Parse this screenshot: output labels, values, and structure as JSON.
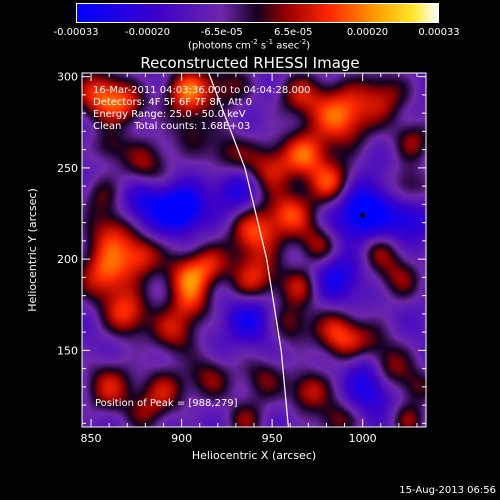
{
  "chart_data": {
    "type": "heatmap",
    "title": "Reconstructed RHESSI Image",
    "xlabel": "Heliocentric X (arcsec)",
    "ylabel": "Heliocentric Y (arcsec)",
    "xlim": [
      845,
      1035
    ],
    "ylim": [
      108,
      302
    ],
    "xticks": [
      850,
      900,
      950,
      1000
    ],
    "yticks": [
      150,
      200,
      250,
      300
    ],
    "colorbar": {
      "min": -0.00033,
      "max": 0.00033,
      "tick_values": [
        -0.00033,
        -0.0002,
        -6.5e-05,
        6.5e-05,
        0.0002,
        0.00033
      ],
      "tick_labels": [
        "-0.00033",
        "-0.00020",
        "-6.5e-05",
        "6.5e-05",
        "0.00020",
        "0.00033"
      ],
      "unit_main": "(photons cm",
      "unit_exp1": "-2",
      "unit_mid": " s",
      "unit_exp2": "-1",
      "unit_mid2": " asec",
      "unit_exp3": "-2",
      "unit_end": ")"
    },
    "annotations": [
      "16-Mar-2011 04:03:36.000 to 04:04:28.000",
      "Detectors: 4F 5F 6F 7F 8F, Att 0",
      "Energy Range: 25.0 - 50.0 keV",
      "Clean    Total counts: 1.68E+03"
    ],
    "peak_label": "Position of Peak = [988,279]",
    "peak": [
      988,
      279
    ],
    "marker": [
      1000,
      224
    ],
    "limb": [
      [
        915,
        302
      ],
      [
        935,
        250
      ],
      [
        947,
        200
      ],
      [
        955,
        150
      ],
      [
        959,
        108
      ]
    ],
    "blobs": [
      [
        855,
        290,
        10,
        0.9
      ],
      [
        870,
        285,
        8,
        0.6
      ],
      [
        903,
        292,
        9,
        0.95
      ],
      [
        925,
        295,
        10,
        0.5
      ],
      [
        965,
        290,
        9,
        0.6
      ],
      [
        988,
        279,
        12,
        1.0
      ],
      [
        1012,
        290,
        10,
        0.6
      ],
      [
        1028,
        265,
        8,
        0.55
      ],
      [
        880,
        252,
        10,
        0.6
      ],
      [
        860,
        262,
        7,
        0.45
      ],
      [
        905,
        270,
        9,
        0.4
      ],
      [
        925,
        258,
        9,
        0.5
      ],
      [
        948,
        250,
        10,
        0.7
      ],
      [
        968,
        258,
        9,
        0.8
      ],
      [
        982,
        242,
        9,
        0.85
      ],
      [
        1025,
        240,
        8,
        0.5
      ],
      [
        900,
        228,
        8,
        -0.95
      ],
      [
        880,
        230,
        10,
        -0.6
      ],
      [
        930,
        238,
        9,
        -0.5
      ],
      [
        1000,
        226,
        11,
        -0.9
      ],
      [
        1025,
        222,
        8,
        -0.5
      ],
      [
        862,
        215,
        10,
        0.7
      ],
      [
        940,
        215,
        10,
        0.85
      ],
      [
        960,
        225,
        9,
        0.8
      ],
      [
        975,
        208,
        8,
        0.6
      ],
      [
        1008,
        205,
        8,
        0.5
      ],
      [
        858,
        192,
        11,
        0.9
      ],
      [
        878,
        202,
        8,
        0.7
      ],
      [
        903,
        190,
        9,
        0.85
      ],
      [
        915,
        198,
        8,
        0.55
      ],
      [
        940,
        190,
        10,
        0.75
      ],
      [
        965,
        185,
        8,
        0.6
      ],
      [
        985,
        190,
        9,
        -0.55
      ],
      [
        1020,
        190,
        9,
        0.55
      ],
      [
        870,
        170,
        9,
        0.8
      ],
      [
        895,
        160,
        9,
        0.65
      ],
      [
        905,
        175,
        8,
        0.55
      ],
      [
        938,
        168,
        9,
        -0.55
      ],
      [
        960,
        165,
        8,
        0.55
      ],
      [
        985,
        160,
        9,
        0.7
      ],
      [
        1000,
        150,
        10,
        0.9
      ],
      [
        1015,
        140,
        9,
        0.6
      ],
      [
        860,
        130,
        10,
        0.7
      ],
      [
        890,
        128,
        9,
        0.6
      ],
      [
        915,
        135,
        9,
        0.55
      ],
      [
        945,
        135,
        9,
        0.5
      ],
      [
        970,
        128,
        8,
        0.7
      ],
      [
        1005,
        130,
        9,
        -0.6
      ],
      [
        1000,
        145,
        8,
        -0.8
      ],
      [
        1030,
        130,
        7,
        0.45
      ],
      [
        880,
        115,
        8,
        0.4
      ],
      [
        935,
        112,
        8,
        0.5
      ],
      [
        985,
        112,
        8,
        0.55
      ],
      [
        1025,
        112,
        7,
        0.5
      ],
      [
        855,
        235,
        8,
        0.4
      ]
    ]
  },
  "footer": {
    "date": "15-Aug-2013 06:56"
  }
}
